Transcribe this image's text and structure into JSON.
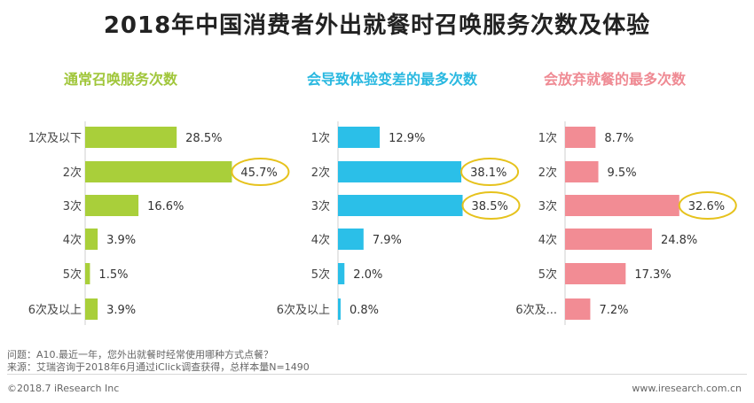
{
  "title": "2018年中国消费者外出就餐时召唤服务次数及体验",
  "chart_data": [
    {
      "type": "bar",
      "orientation": "horizontal",
      "title": "通常召唤服务次数",
      "color": "#a9cf3a",
      "title_color": "#a0c63a",
      "categories": [
        "1次及以下",
        "2次",
        "3次",
        "4次",
        "5次",
        "6次及以上"
      ],
      "values": [
        28.5,
        45.7,
        16.6,
        3.9,
        1.5,
        3.9
      ],
      "labels": [
        "28.5%",
        "45.7%",
        "16.6%",
        "3.9%",
        "1.5%",
        "3.9%"
      ],
      "highlight": [
        1
      ]
    },
    {
      "type": "bar",
      "orientation": "horizontal",
      "title": "会导致体验变差的最多次数",
      "color": "#2bbfe8",
      "title_color": "#29b8e0",
      "categories": [
        "1次",
        "2次",
        "3次",
        "4次",
        "5次",
        "6次及以上"
      ],
      "values": [
        12.9,
        38.1,
        38.5,
        7.9,
        2.0,
        0.8
      ],
      "labels": [
        "12.9%",
        "38.1%",
        "38.5%",
        "7.9%",
        "2.0%",
        "0.8%"
      ],
      "highlight": [
        1,
        2
      ]
    },
    {
      "type": "bar",
      "orientation": "horizontal",
      "title": "会放弃就餐的最多次数",
      "color": "#f28c94",
      "title_color": "#ef8a93",
      "categories": [
        "1次",
        "2次",
        "3次",
        "4次",
        "5次",
        "6次及..."
      ],
      "values": [
        8.7,
        9.5,
        32.6,
        24.8,
        17.3,
        7.2
      ],
      "labels": [
        "8.7%",
        "9.5%",
        "32.6%",
        "24.8%",
        "17.3%",
        "7.2%"
      ],
      "highlight": [
        2
      ]
    }
  ],
  "notes": {
    "question": "问题：A10.最近一年，您外出就餐时经常使用哪种方式点餐？",
    "source": "来源：艾瑞咨询于2018年6月通过iClick调查获得，总样本量N=1490"
  },
  "footer": {
    "copyright": "©2018.7 iResearch Inc",
    "website": "www.iresearch.com.cn"
  },
  "colors": {
    "highlight_ring": "#e6c21c"
  }
}
